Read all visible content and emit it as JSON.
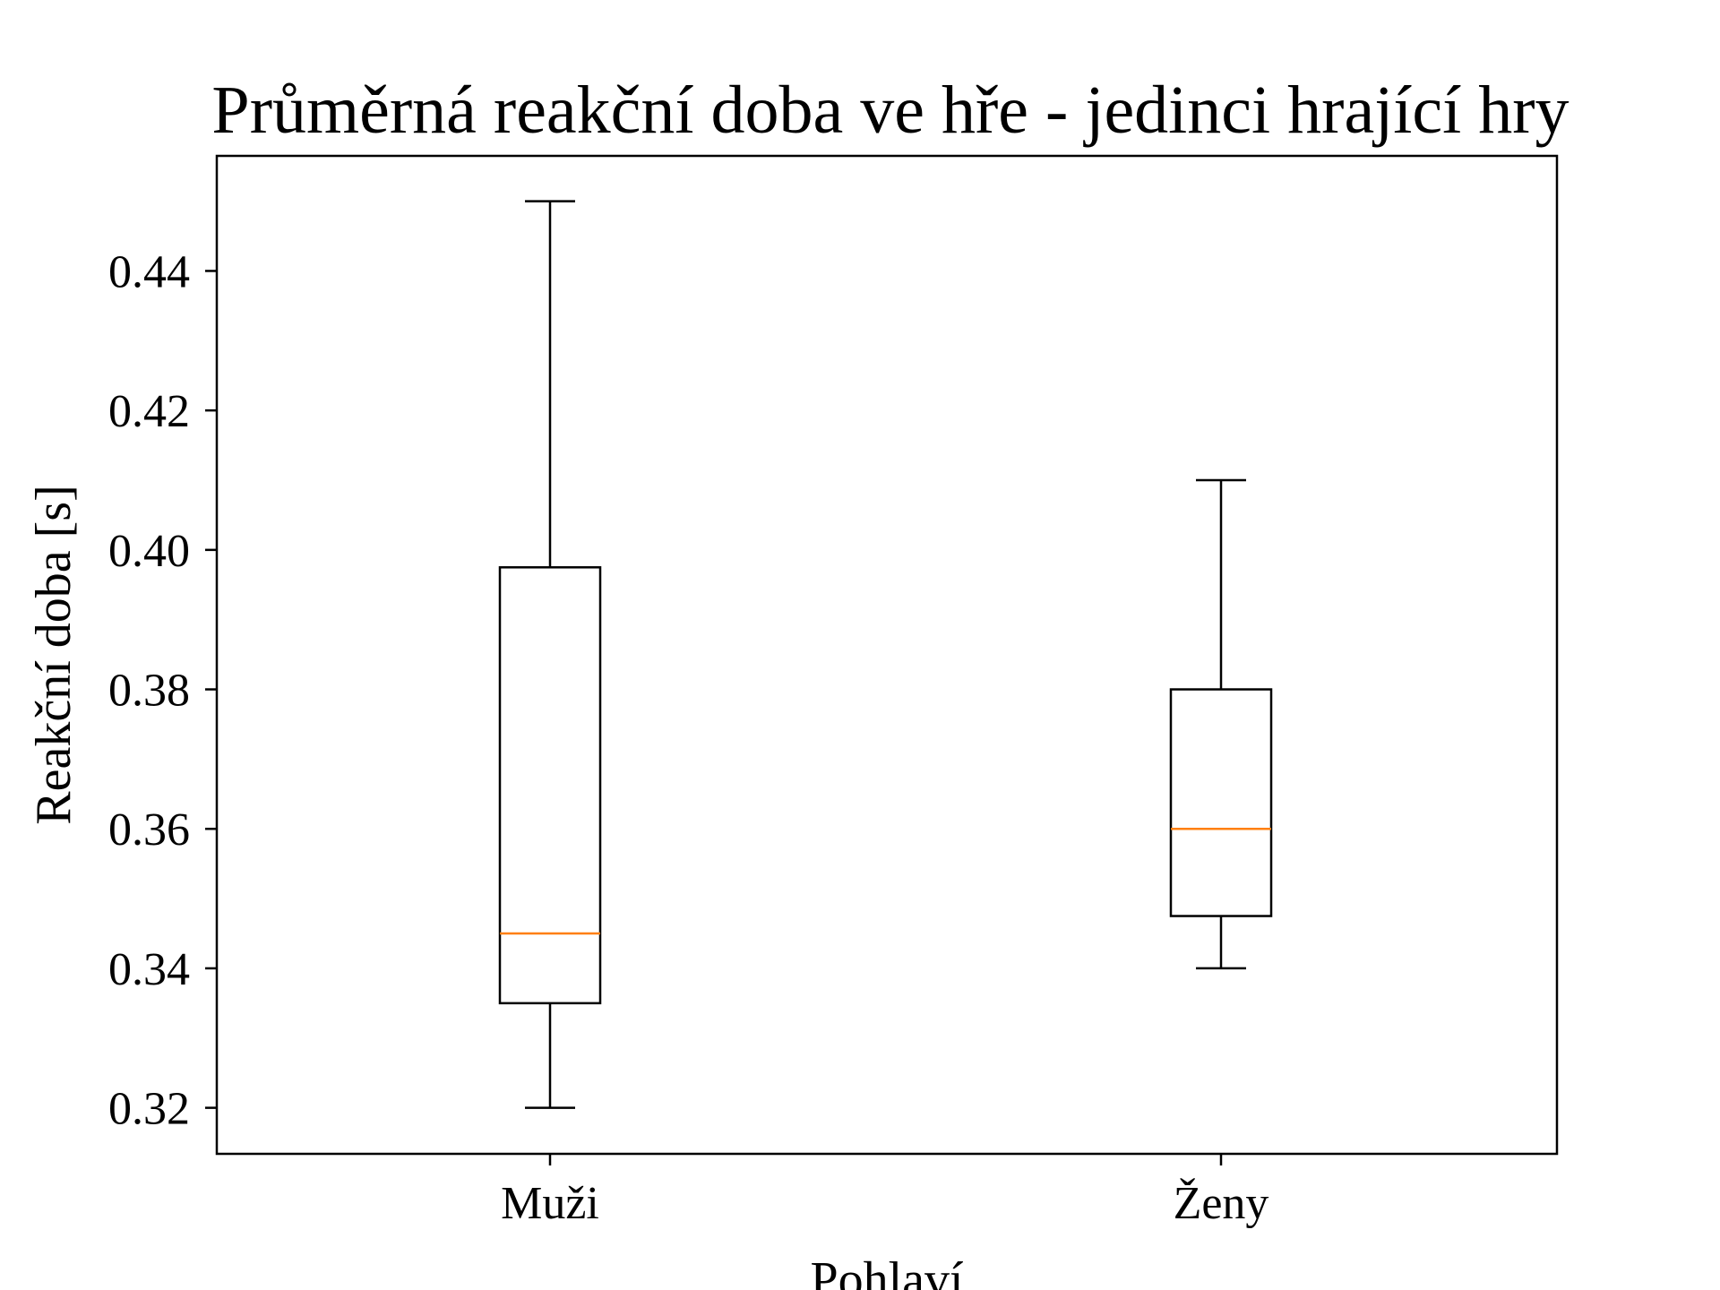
{
  "chart_data": {
    "type": "boxplot",
    "title": "Průměrná reakční doba ve hře - jedinci hrající hry",
    "xlabel": "Pohlaví",
    "ylabel": "Reakční doba [s]",
    "ylim": [
      0.3134,
      0.4565
    ],
    "yticks": [
      "0.32",
      "0.34",
      "0.36",
      "0.38",
      "0.40",
      "0.42",
      "0.44"
    ],
    "grid": false,
    "categories": [
      "Muži",
      "Ženy"
    ],
    "boxes": [
      {
        "category": "Muži",
        "whisker_low": 0.32,
        "q1": 0.335,
        "median": 0.345,
        "q3": 0.3975,
        "whisker_high": 0.45
      },
      {
        "category": "Ženy",
        "whisker_low": 0.34,
        "q1": 0.3475,
        "median": 0.36,
        "q3": 0.38,
        "whisker_high": 0.41
      }
    ],
    "colors": {
      "box": "#000000",
      "median": "#ff7f0e",
      "axes": "#000000"
    }
  }
}
